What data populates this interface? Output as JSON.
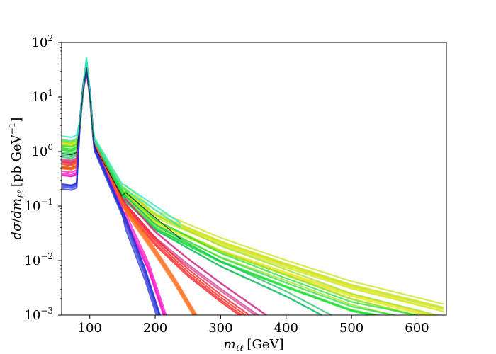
{
  "chart_data": {
    "type": "line",
    "title": "",
    "xlabel": {
      "symbol": "m",
      "sub": "ℓℓ",
      "unit": "[GeV]"
    },
    "ylabel": {
      "num": "dσ",
      "den": "dm",
      "den_sub": "ℓℓ",
      "unit_pre": "[pb GeV",
      "unit_exp": "−1",
      "unit_post": "]"
    },
    "xlim": [
      57,
      645
    ],
    "ylim": [
      0.001,
      100
    ],
    "yscale": "log",
    "grid": false,
    "legend": "none",
    "x_ticks": [
      {
        "value": 100,
        "label": "100"
      },
      {
        "value": 200,
        "label": "200"
      },
      {
        "value": 300,
        "label": "300"
      },
      {
        "value": 400,
        "label": "400"
      },
      {
        "value": 500,
        "label": "500"
      },
      {
        "value": 600,
        "label": "600"
      }
    ],
    "y_ticks": [
      {
        "value": 0.001,
        "mant": "10",
        "exp": "−3"
      },
      {
        "value": 0.01,
        "mant": "10",
        "exp": "−2"
      },
      {
        "value": 0.1,
        "mant": "10",
        "exp": "−1"
      },
      {
        "value": 1,
        "mant": "10",
        "exp": "0"
      },
      {
        "value": 10,
        "mant": "10",
        "exp": "1"
      },
      {
        "value": 100,
        "mant": "10",
        "exp": "2"
      }
    ],
    "peak_x": 95,
    "series_groups": [
      {
        "color": "#c8e41c",
        "x_start": 57,
        "y_start": 1.6,
        "peak": 46,
        "tail_x": [
          107,
          150,
          200,
          300,
          400,
          500,
          645
        ],
        "tail_y": [
          1.6,
          0.22,
          0.07,
          0.022,
          0.0085,
          0.0035,
          0.0013
        ],
        "count": 5
      },
      {
        "color": "#e6e61e",
        "x_start": 57,
        "y_start": 1.4,
        "peak": 44,
        "tail_x": [
          107,
          150,
          200,
          300,
          400,
          500,
          645
        ],
        "tail_y": [
          1.5,
          0.2,
          0.06,
          0.018,
          0.007,
          0.0028,
          0.001
        ],
        "count": 4
      },
      {
        "color": "#a0e028",
        "x_start": 57,
        "y_start": 1.3,
        "peak": 42,
        "tail_x": [
          107,
          150,
          200,
          300,
          400,
          500,
          600
        ],
        "tail_y": [
          1.45,
          0.19,
          0.055,
          0.015,
          0.0055,
          0.002,
          0.001
        ],
        "count": 4
      },
      {
        "color": "#22e034",
        "x_start": 57,
        "y_start": 1.1,
        "peak": 40,
        "tail_x": [
          107,
          150,
          200,
          300,
          400,
          500,
          560
        ],
        "tail_y": [
          1.4,
          0.17,
          0.045,
          0.011,
          0.0038,
          0.0014,
          0.001
        ],
        "count": 5
      },
      {
        "color": "#1fbf68",
        "x_start": 57,
        "y_start": 0.9,
        "peak": 38,
        "tail_x": [
          107,
          150,
          200,
          300,
          400,
          460
        ],
        "tail_y": [
          1.35,
          0.15,
          0.04,
          0.0085,
          0.0024,
          0.001
        ],
        "count": 3
      },
      {
        "color": "#d03a8c",
        "x_start": 57,
        "y_start": 0.7,
        "peak": 36,
        "tail_x": [
          107,
          150,
          200,
          250,
          300,
          360
        ],
        "tail_y": [
          1.3,
          0.13,
          0.028,
          0.009,
          0.0032,
          0.001
        ],
        "count": 4
      },
      {
        "color": "#ff1a1a",
        "x_start": 57,
        "y_start": 0.6,
        "peak": 35,
        "tail_x": [
          107,
          150,
          200,
          250,
          300,
          340
        ],
        "tail_y": [
          1.3,
          0.12,
          0.024,
          0.0065,
          0.0022,
          0.001
        ],
        "count": 4
      },
      {
        "color": "#ff6a14",
        "x_start": 57,
        "y_start": 0.5,
        "peak": 34,
        "tail_x": [
          107,
          150,
          200,
          230,
          260
        ],
        "tail_y": [
          1.25,
          0.1,
          0.014,
          0.004,
          0.001
        ],
        "count": 4
      },
      {
        "color": "#ff10c8",
        "x_start": 57,
        "y_start": 0.4,
        "peak": 33,
        "tail_x": [
          107,
          150,
          190,
          215
        ],
        "tail_y": [
          1.2,
          0.085,
          0.008,
          0.001
        ],
        "count": 4
      },
      {
        "color": "#2834d6",
        "x_start": 57,
        "y_start": 0.22,
        "peak": 31,
        "tail_x": [
          107,
          150,
          185,
          205
        ],
        "tail_y": [
          1.1,
          0.07,
          0.0055,
          0.001
        ],
        "count": 5
      },
      {
        "color": "#24e6c8",
        "x_start": 57,
        "y_start": 1.8,
        "peak": 50,
        "tail_x": [
          107,
          150,
          200
        ],
        "tail_y": [
          1.7,
          0.23,
          0.09
        ],
        "count": 2
      },
      {
        "color": "#111111",
        "x_start": 57,
        "y_start": 1.0,
        "peak": 38,
        "tail_x": [
          107,
          150,
          200
        ],
        "tail_y": [
          1.35,
          0.16,
          0.05
        ],
        "count": 1
      }
    ]
  }
}
